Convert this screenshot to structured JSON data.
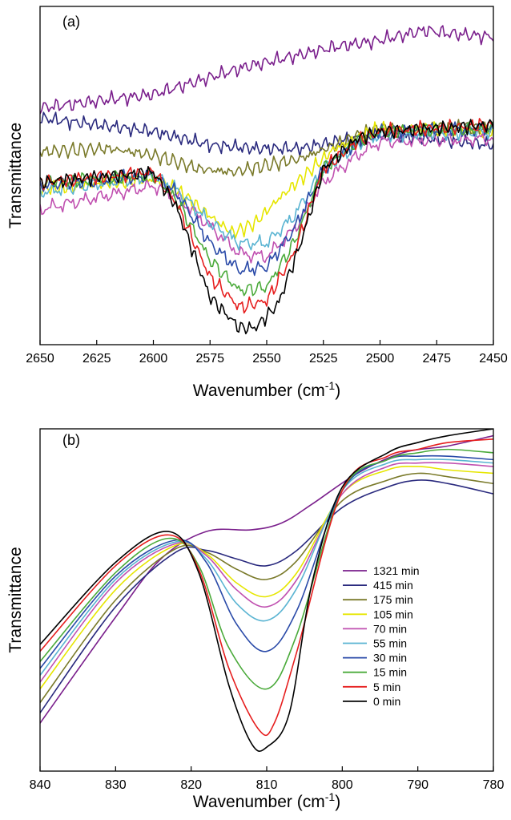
{
  "chart_data": [
    {
      "type": "line",
      "panel_label": "(a)",
      "xlabel_base": "Wavenumber (cm",
      "xlabel_sup": "-1",
      "xlabel_tail": ")",
      "ylabel": "Transmittance",
      "xlim": [
        2650,
        2450
      ],
      "ylim": [
        0,
        100
      ],
      "x_ticks": [
        2650,
        2625,
        2600,
        2575,
        2550,
        2525,
        2500,
        2475,
        2450
      ],
      "y_tick_labels": false,
      "grid": false,
      "noise_amplitude": 2.4,
      "series": [
        {
          "name": "1321 min",
          "color": "#7a1f8c",
          "x": [
            2650,
            2600,
            2580,
            2560,
            2540,
            2520,
            2500,
            2480,
            2470,
            2450
          ],
          "y": [
            70,
            74,
            78,
            82,
            85,
            88,
            90,
            93,
            92,
            91
          ]
        },
        {
          "name": "415 min",
          "color": "#2a2a7e",
          "x": [
            2650,
            2600,
            2575,
            2555,
            2535,
            2520,
            2500,
            2480,
            2450
          ],
          "y": [
            67,
            63,
            59,
            58,
            58,
            60,
            62,
            61,
            59
          ]
        },
        {
          "name": "175 min",
          "color": "#7a7a2a",
          "x": [
            2650,
            2620,
            2600,
            2580,
            2565,
            2550,
            2535,
            2520,
            2500,
            2450
          ],
          "y": [
            57,
            58,
            56,
            52,
            51,
            53,
            55,
            59,
            64,
            64
          ]
        },
        {
          "name": "105 min",
          "color": "#e6e600",
          "x": [
            2650,
            2600,
            2590,
            2575,
            2565,
            2555,
            2545,
            2530,
            2520,
            2500,
            2450
          ],
          "y": [
            46,
            49,
            46,
            38,
            33,
            36,
            43,
            52,
            58,
            64,
            63
          ]
        },
        {
          "name": "70 min",
          "color": "#c050b0",
          "x": [
            2650,
            2600,
            2590,
            2575,
            2562,
            2550,
            2538,
            2525,
            2510,
            2500,
            2450
          ],
          "y": [
            40,
            47,
            44,
            35,
            27,
            26,
            34,
            48,
            56,
            60,
            61
          ]
        },
        {
          "name": "55 min",
          "color": "#5ab4d2",
          "x": [
            2650,
            2600,
            2590,
            2575,
            2562,
            2550,
            2538,
            2525,
            2510,
            2500,
            2450
          ],
          "y": [
            45,
            50,
            46,
            36,
            30,
            30,
            38,
            52,
            59,
            62,
            63
          ]
        },
        {
          "name": "30 min",
          "color": "#2a4aa8",
          "x": [
            2650,
            2600,
            2590,
            2575,
            2562,
            2550,
            2538,
            2525,
            2510,
            2500,
            2450
          ],
          "y": [
            47,
            50,
            45,
            30,
            22,
            23,
            34,
            52,
            60,
            63,
            64
          ]
        },
        {
          "name": "15 min",
          "color": "#4aaa3a",
          "x": [
            2650,
            2600,
            2590,
            2575,
            2562,
            2550,
            2538,
            2525,
            2510,
            2500,
            2450
          ],
          "y": [
            48,
            50,
            43,
            25,
            16,
            17,
            30,
            52,
            60,
            63,
            64
          ]
        },
        {
          "name": "5 min",
          "color": "#e61e1e",
          "x": [
            2650,
            2600,
            2590,
            2575,
            2562,
            2550,
            2538,
            2525,
            2510,
            2500,
            2450
          ],
          "y": [
            48,
            51,
            42,
            20,
            11,
            13,
            27,
            52,
            60,
            63,
            65
          ]
        },
        {
          "name": "0 min",
          "color": "#000000",
          "x": [
            2650,
            2600,
            2590,
            2575,
            2562,
            2555,
            2545,
            2535,
            2525,
            2510,
            2500,
            2450
          ],
          "y": [
            48,
            51,
            41,
            14,
            5,
            5,
            12,
            30,
            52,
            61,
            63,
            65
          ]
        }
      ]
    },
    {
      "type": "line",
      "panel_label": "(b)",
      "xlabel_base": "Wavenumber (cm",
      "xlabel_sup": "-1",
      "xlabel_tail": ")",
      "ylabel": "Transmittance",
      "xlim": [
        840,
        780
      ],
      "ylim": [
        0,
        100
      ],
      "x_ticks": [
        840,
        830,
        820,
        810,
        800,
        790,
        780
      ],
      "y_tick_labels": false,
      "grid": false,
      "legend_position": "center-right",
      "series": [
        {
          "name": "1321 min",
          "color": "#7a1f8c",
          "x": [
            840,
            830,
            824,
            818,
            812,
            808,
            804,
            798,
            792,
            786,
            780
          ],
          "y": [
            14,
            45,
            62,
            70,
            70.5,
            72.5,
            78,
            87,
            93,
            95,
            98
          ]
        },
        {
          "name": "415 min",
          "color": "#2a2a7e",
          "x": [
            840,
            830,
            822,
            818,
            814,
            810,
            806,
            800,
            794,
            790,
            786,
            780
          ],
          "y": [
            17,
            48,
            64,
            64.5,
            62,
            60,
            64.5,
            77,
            83,
            85,
            84,
            81
          ]
        },
        {
          "name": "175 min",
          "color": "#7a7a2a",
          "x": [
            840,
            830,
            822,
            818,
            814,
            810,
            806,
            800,
            794,
            790,
            786,
            780
          ],
          "y": [
            20,
            50,
            65,
            64,
            59,
            56,
            61.5,
            79,
            85,
            87,
            86,
            84
          ]
        },
        {
          "name": "105 min",
          "color": "#e6e600",
          "x": [
            840,
            830,
            822,
            818,
            814,
            810,
            806,
            800,
            794,
            790,
            786,
            780
          ],
          "y": [
            24,
            53,
            66,
            63.5,
            55,
            51,
            58,
            81,
            88,
            89,
            88,
            87
          ]
        },
        {
          "name": "70 min",
          "color": "#c050b0",
          "x": [
            840,
            830,
            822,
            818,
            814,
            810,
            806,
            800,
            794,
            790,
            786,
            780
          ],
          "y": [
            26,
            55,
            66.5,
            63,
            53,
            48,
            56,
            81,
            89,
            90,
            90,
            89
          ]
        },
        {
          "name": "55 min",
          "color": "#5ab4d2",
          "x": [
            840,
            830,
            822,
            818,
            814,
            810,
            806,
            800,
            794,
            790,
            786,
            780
          ],
          "y": [
            28,
            56,
            67,
            62,
            49,
            44,
            53.5,
            82,
            90,
            91,
            91,
            90
          ]
        },
        {
          "name": "30 min",
          "color": "#2a4aa8",
          "x": [
            840,
            830,
            822,
            818,
            814,
            810,
            806,
            800,
            794,
            790,
            786,
            780
          ],
          "y": [
            30,
            57,
            67.5,
            61,
            43,
            35,
            47,
            82,
            91,
            92,
            92,
            91
          ]
        },
        {
          "name": "15 min",
          "color": "#4aaa3a",
          "x": [
            840,
            830,
            823,
            819,
            815,
            810,
            806,
            800,
            794,
            790,
            786,
            780
          ],
          "y": [
            32,
            58,
            68,
            60,
            36,
            24,
            40,
            82,
            91,
            93,
            94,
            93
          ]
        },
        {
          "name": "5 min",
          "color": "#e61e1e",
          "x": [
            840,
            830,
            823,
            819,
            815,
            811,
            809,
            806,
            800,
            794,
            790,
            786,
            780
          ],
          "y": [
            35,
            60,
            69,
            59,
            30,
            12,
            14,
            35,
            82,
            92,
            94,
            96,
            97
          ]
        },
        {
          "name": "0 min",
          "color": "#000000",
          "x": [
            840,
            830,
            823,
            819,
            815,
            812,
            810,
            807,
            804,
            800,
            794,
            790,
            786,
            780
          ],
          "y": [
            37,
            61,
            70,
            58,
            25,
            8,
            7,
            17,
            55,
            83,
            93,
            96,
            98,
            100
          ]
        }
      ]
    }
  ]
}
